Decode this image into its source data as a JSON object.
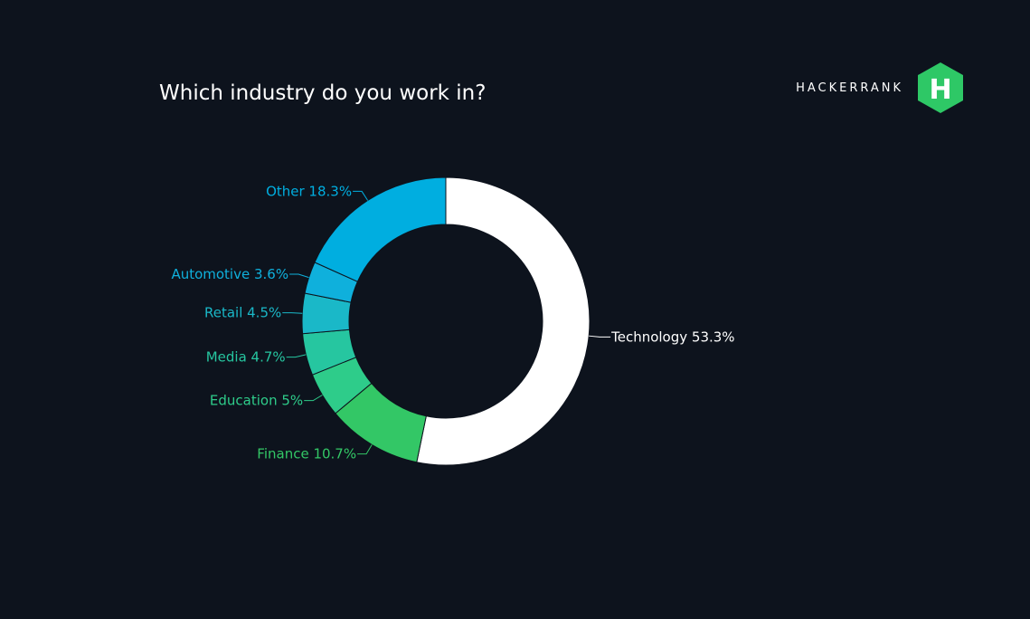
{
  "brand": {
    "wordmark": "HACKERRANK",
    "logo_letter": "H",
    "logo_color": "#2ec866"
  },
  "chart_data": {
    "type": "pie",
    "title": "Which industry do you work in?",
    "legend": "none",
    "slices": [
      {
        "label": "Technology",
        "value": 53.3,
        "display": "Technology 53.3%",
        "color": "#ffffff",
        "label_color": "#ffffff"
      },
      {
        "label": "Finance",
        "value": 10.7,
        "display": "Finance 10.7%",
        "color": "#33c766",
        "label_color": "#33c766"
      },
      {
        "label": "Education",
        "value": 5,
        "display": "Education 5%",
        "color": "#2ecc8a",
        "label_color": "#2ecc8a"
      },
      {
        "label": "Media",
        "value": 4.7,
        "display": "Media 4.7%",
        "color": "#26c6a0",
        "label_color": "#26c6a0"
      },
      {
        "label": "Retail",
        "value": 4.5,
        "display": "Retail 4.5%",
        "color": "#1ab8c8",
        "label_color": "#1ab8c8"
      },
      {
        "label": "Automotive",
        "value": 3.6,
        "display": "Automotive 3.6%",
        "color": "#0fb0dc",
        "label_color": "#0fb0dc"
      },
      {
        "label": "Other",
        "value": 18.3,
        "display": "Other 18.3%",
        "color": "#00aee0",
        "label_color": "#00aee0"
      }
    ]
  }
}
